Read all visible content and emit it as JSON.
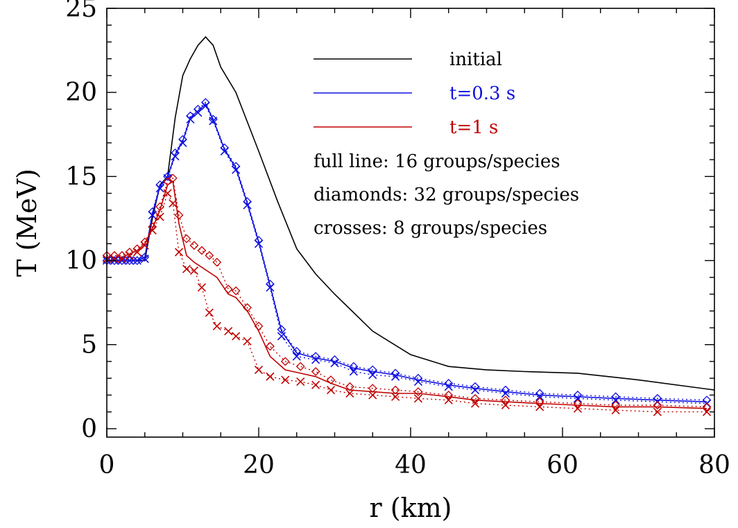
{
  "chart_data": {
    "type": "line",
    "xlabel": "r (km)",
    "ylabel": "T (MeV)",
    "xlim": [
      0,
      80
    ],
    "ylim": [
      -0.5,
      25
    ],
    "xticks": [
      0,
      20,
      40,
      60,
      80
    ],
    "xtick_labels": [
      "0",
      "20",
      "40",
      "60",
      "80"
    ],
    "yticks": [
      0,
      5,
      10,
      15,
      20,
      25
    ],
    "ytick_labels": [
      "0",
      "5",
      "10",
      "15",
      "20",
      "25"
    ],
    "grid": false,
    "legend_position": "top-right",
    "colors": {
      "initial": "#000000",
      "t03": "#1010e0",
      "t1": "#c00000"
    },
    "series": [
      {
        "name": "initial",
        "style": "solid",
        "color": "#000000",
        "x": [
          0,
          1,
          2,
          3,
          4,
          5,
          6,
          7,
          8,
          9,
          10,
          11,
          12,
          13,
          14,
          15,
          17,
          20,
          22.5,
          25,
          27.5,
          30,
          35,
          40,
          45,
          50,
          55,
          62,
          70,
          80
        ],
        "y": [
          10.0,
          10.0,
          10.0,
          10.0,
          10.0,
          10.0,
          12.5,
          14.5,
          15.0,
          18.5,
          21.0,
          22.0,
          22.8,
          23.3,
          22.8,
          21.5,
          20.0,
          16.5,
          13.5,
          10.7,
          9.2,
          8.0,
          5.8,
          4.4,
          3.7,
          3.5,
          3.4,
          3.3,
          2.9,
          2.3
        ]
      },
      {
        "name": "t=0.3 s",
        "style": "solid",
        "color": "#1010e0",
        "x": [
          0,
          1,
          2,
          3,
          4,
          5,
          6,
          7,
          8,
          9,
          10,
          11,
          12,
          13,
          14,
          15.5,
          17,
          18.5,
          20,
          21.5,
          23,
          25,
          27.5,
          30,
          32.5,
          35,
          38,
          41,
          45,
          48.5,
          52.5,
          57,
          62,
          67,
          72.5,
          79
        ],
        "y": [
          10.0,
          10.0,
          10.0,
          10.0,
          10.0,
          10.2,
          12.8,
          14.4,
          15.0,
          16.3,
          17.1,
          18.5,
          18.9,
          19.3,
          18.4,
          16.6,
          15.5,
          13.4,
          11.1,
          8.5,
          5.8,
          4.5,
          4.2,
          4.0,
          3.6,
          3.4,
          3.2,
          2.9,
          2.6,
          2.4,
          2.2,
          2.0,
          1.9,
          1.8,
          1.7,
          1.6
        ]
      },
      {
        "name": "t=1 s",
        "style": "solid",
        "color": "#c00000",
        "x": [
          0,
          1,
          2,
          3,
          4,
          5,
          6,
          7,
          8,
          8.7,
          9.5,
          10.5,
          11.5,
          12.5,
          13.5,
          14.5,
          16,
          17,
          18.5,
          20,
          21.5,
          23.5,
          25.5,
          27.5,
          29.5,
          32,
          35,
          38,
          41,
          45,
          48.5,
          52.5,
          57,
          62,
          67,
          72.5,
          79
        ],
        "y": [
          10.2,
          10.2,
          10.2,
          10.4,
          10.6,
          11.0,
          11.9,
          13.0,
          14.5,
          14.7,
          12.2,
          10.3,
          9.9,
          9.6,
          9.3,
          9.0,
          8.0,
          7.8,
          7.0,
          5.8,
          4.3,
          3.5,
          3.3,
          3.1,
          2.7,
          2.3,
          2.2,
          2.1,
          2.1,
          1.9,
          1.7,
          1.6,
          1.5,
          1.4,
          1.3,
          1.3,
          1.2
        ]
      },
      {
        "name": "t=0.3 s, 32 groups (diamonds)",
        "style": "dotted",
        "marker": "diamond",
        "color": "#1010e0",
        "x": [
          0,
          1,
          2,
          3,
          4,
          5,
          6,
          7,
          8,
          9,
          10,
          11,
          12,
          13,
          14,
          15.5,
          17,
          18.5,
          20,
          21.5,
          23,
          25,
          27.5,
          30,
          32.5,
          35,
          38,
          41,
          45,
          48.5,
          52.5,
          57,
          62,
          67,
          72.5,
          79
        ],
        "y": [
          10.0,
          10.0,
          10.0,
          10.0,
          10.0,
          10.2,
          12.9,
          14.5,
          15.0,
          16.4,
          17.2,
          18.6,
          19.0,
          19.4,
          18.4,
          16.7,
          15.6,
          13.5,
          11.2,
          8.6,
          5.9,
          4.6,
          4.3,
          4.1,
          3.7,
          3.5,
          3.3,
          3.0,
          2.7,
          2.5,
          2.3,
          2.1,
          2.0,
          1.9,
          1.8,
          1.7
        ]
      },
      {
        "name": "t=0.3 s, 8 groups (crosses)",
        "style": "dotted",
        "marker": "cross",
        "color": "#1010e0",
        "x": [
          0,
          1,
          2,
          3,
          4,
          5,
          6,
          7,
          8,
          9,
          10,
          11,
          12,
          13,
          14,
          15.5,
          17,
          18.5,
          20,
          21.5,
          23,
          25,
          27.5,
          30,
          32.5,
          35,
          38,
          41,
          45,
          48.5,
          52.5,
          57,
          62,
          67,
          72.5,
          79
        ],
        "y": [
          10.0,
          10.0,
          10.0,
          10.0,
          10.0,
          10.1,
          12.7,
          14.3,
          14.9,
          16.2,
          17.0,
          18.4,
          18.8,
          19.2,
          18.3,
          16.5,
          15.4,
          13.3,
          11.0,
          8.4,
          5.5,
          4.3,
          4.1,
          3.9,
          3.4,
          3.2,
          3.1,
          2.8,
          2.5,
          2.3,
          2.1,
          1.9,
          1.8,
          1.7,
          1.6,
          1.5
        ]
      },
      {
        "name": "t=1 s, 32 groups (diamonds)",
        "style": "dotted",
        "marker": "diamond",
        "color": "#c00000",
        "x": [
          0,
          1,
          2,
          3,
          4,
          5,
          6,
          7,
          8,
          8.7,
          9.5,
          10.5,
          11.5,
          12.5,
          13.5,
          14.5,
          16,
          17,
          18.5,
          20,
          21.5,
          23.5,
          25.5,
          27.5,
          29.5,
          32,
          35,
          38,
          41,
          45,
          48.5,
          52.5,
          57,
          62,
          67,
          72.5,
          79
        ],
        "y": [
          10.3,
          10.3,
          10.3,
          10.5,
          10.7,
          11.1,
          12.0,
          13.2,
          14.7,
          14.9,
          12.7,
          11.3,
          10.9,
          10.6,
          10.3,
          9.9,
          8.3,
          8.2,
          7.2,
          6.1,
          4.9,
          4.0,
          3.7,
          3.4,
          2.9,
          2.5,
          2.4,
          2.3,
          2.2,
          2.0,
          1.8,
          1.7,
          1.6,
          1.5,
          1.4,
          1.4,
          1.3
        ]
      },
      {
        "name": "t=1 s, 8 groups (crosses)",
        "style": "dotted",
        "marker": "cross",
        "color": "#c00000",
        "x": [
          0,
          1,
          2,
          3,
          4,
          5,
          6,
          7,
          8,
          8.7,
          9.5,
          10.5,
          11.5,
          12.5,
          13.5,
          14.5,
          16,
          17,
          18.5,
          20,
          21.5,
          23.5,
          25.5,
          27.5,
          29.5,
          32,
          35,
          38,
          41,
          45,
          48.5,
          52.5,
          57,
          62,
          67,
          72.5,
          79
        ],
        "y": [
          10.1,
          10.1,
          10.1,
          10.3,
          10.5,
          10.9,
          11.8,
          12.6,
          14.0,
          13.4,
          10.5,
          9.5,
          9.4,
          8.4,
          6.9,
          6.1,
          5.8,
          5.5,
          5.2,
          3.5,
          3.1,
          2.9,
          2.8,
          2.6,
          2.3,
          2.1,
          2.0,
          1.9,
          1.8,
          1.7,
          1.5,
          1.4,
          1.3,
          1.2,
          1.1,
          1.0,
          1.0
        ]
      }
    ],
    "legend": [
      {
        "label": "initial",
        "color": "#000000"
      },
      {
        "label": "t=0.3 s",
        "color": "#1010e0"
      },
      {
        "label": "t=1 s",
        "color": "#c00000"
      }
    ],
    "annotations": [
      "full line: 16 groups/species",
      "diamonds: 32 groups/species",
      "crosses: 8 groups/species"
    ]
  }
}
